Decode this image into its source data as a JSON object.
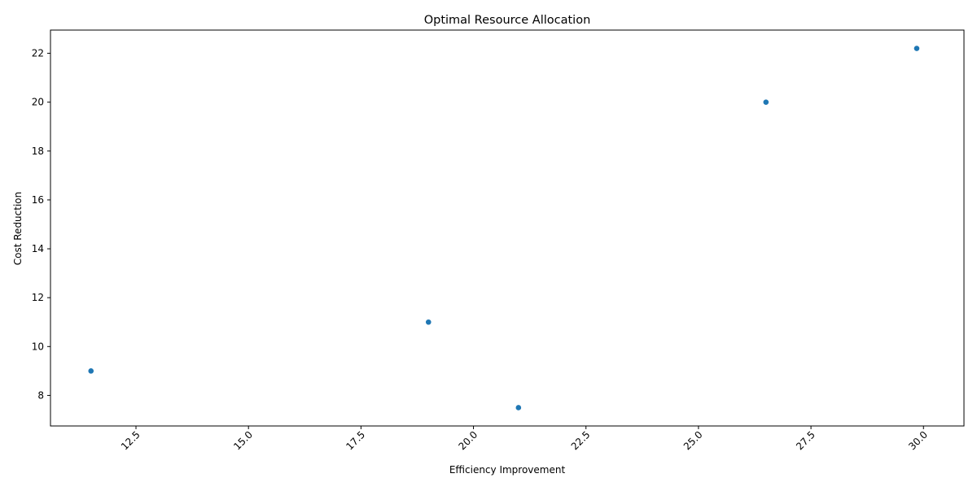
{
  "chart_data": {
    "type": "scatter",
    "title": "Optimal Resource Allocation",
    "xlabel": "Efficiency Improvement",
    "ylabel": "Cost Reduction",
    "xlim": [
      10.6,
      30.9
    ],
    "ylim": [
      6.75,
      22.95
    ],
    "xticks": [
      12.5,
      15.0,
      17.5,
      20.0,
      22.5,
      25.0,
      27.5,
      30.0
    ],
    "xtick_labels": [
      "12.5",
      "15.0",
      "17.5",
      "20.0",
      "22.5",
      "25.0",
      "27.5",
      "30.0"
    ],
    "yticks": [
      8,
      10,
      12,
      14,
      16,
      18,
      20,
      22
    ],
    "ytick_labels": [
      "8",
      "10",
      "12",
      "14",
      "16",
      "18",
      "20",
      "22"
    ],
    "points": [
      {
        "x": 11.5,
        "y": 9.0
      },
      {
        "x": 19.0,
        "y": 11.0
      },
      {
        "x": 21.0,
        "y": 7.5
      },
      {
        "x": 26.5,
        "y": 20.0
      },
      {
        "x": 29.85,
        "y": 22.2
      }
    ],
    "grid": false,
    "legend": "none",
    "marker_color": "#1f77b4"
  }
}
